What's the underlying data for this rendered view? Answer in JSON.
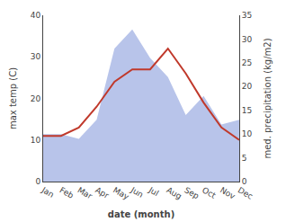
{
  "chart_data": {
    "type": "line",
    "categories": [
      "Jan",
      "Feb",
      "Mar",
      "Apr",
      "May",
      "Jun",
      "Jul",
      "Aug",
      "Sep",
      "Oct",
      "Nov",
      "Dec"
    ],
    "series": [
      {
        "type": "area",
        "axis": "y2",
        "color": "#b8c4ea",
        "values": [
          10,
          10,
          9,
          13,
          28,
          32,
          26,
          22,
          14,
          18,
          12,
          13
        ]
      },
      {
        "type": "line",
        "color": "#c0392b",
        "values": [
          11,
          11,
          13,
          18,
          24,
          27,
          27,
          32,
          26,
          19,
          13,
          10
        ]
      }
    ],
    "xlabel": "date (month)",
    "ylabel": "max temp (C)",
    "y2label": "med. precipitation (kg/m2)",
    "ylim": [
      0,
      40
    ],
    "yticks": [
      0,
      10,
      20,
      30,
      40
    ],
    "y2lim": [
      0,
      35
    ],
    "y2ticks": [
      0,
      5,
      10,
      15,
      20,
      25,
      30,
      35
    ],
    "grid": false
  }
}
